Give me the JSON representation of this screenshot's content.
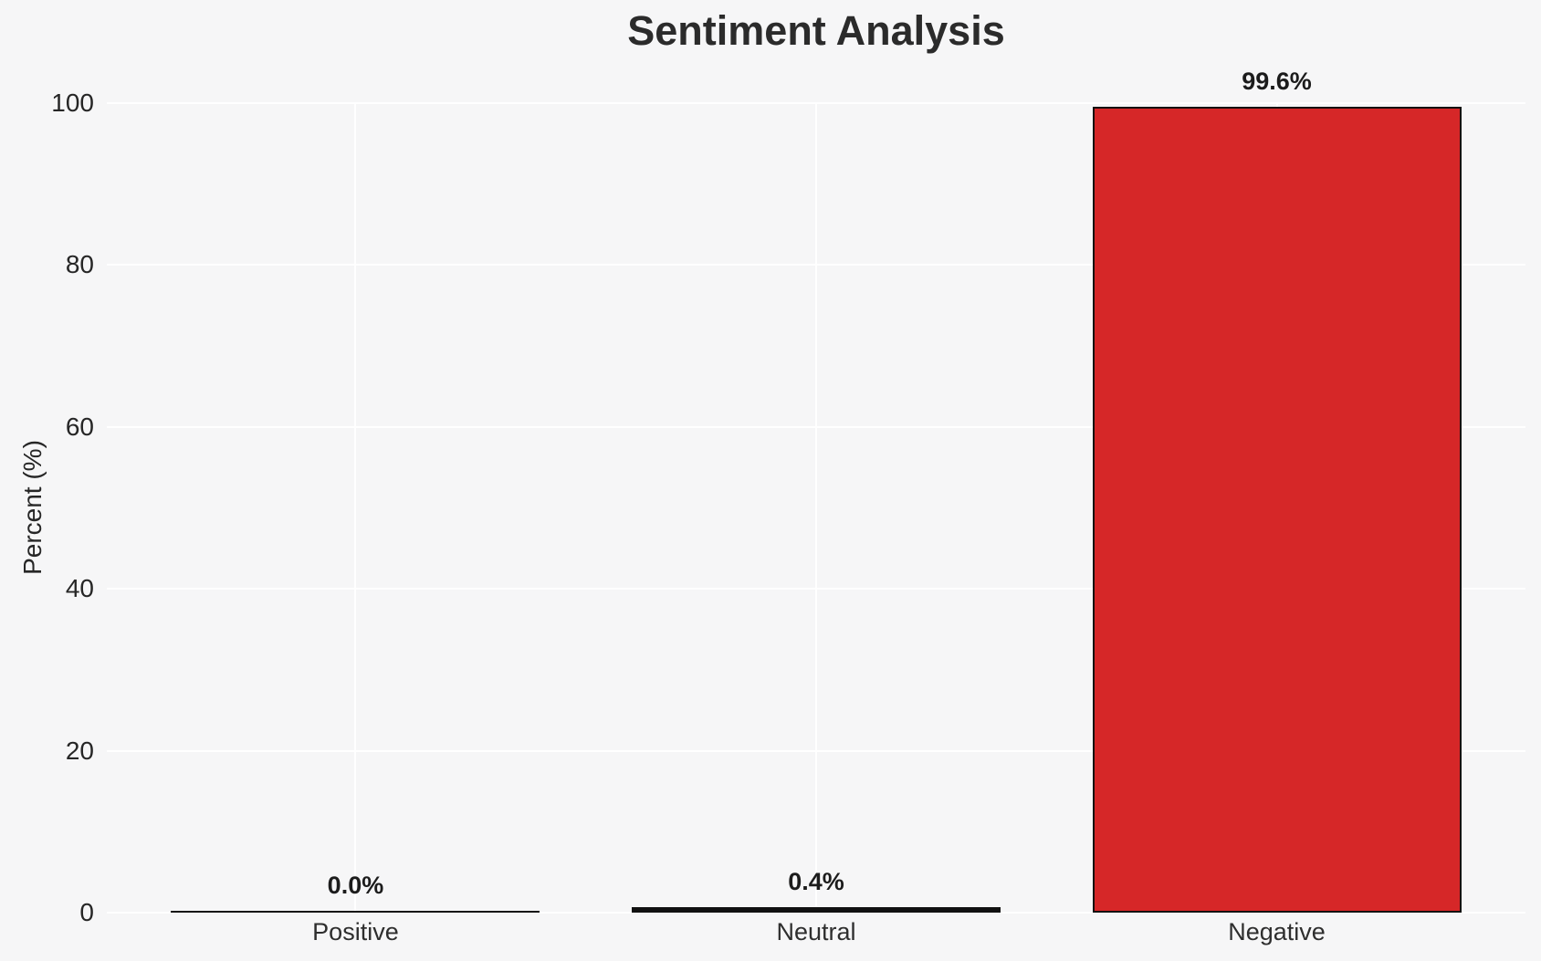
{
  "chart_data": {
    "type": "bar",
    "title": "Sentiment Analysis",
    "xlabel": "",
    "ylabel": "Percent (%)",
    "categories": [
      "Positive",
      "Neutral",
      "Negative"
    ],
    "values": [
      0.0,
      0.4,
      99.6
    ],
    "bar_value_labels": [
      "0.0%",
      "0.4%",
      "99.6%"
    ],
    "bar_fills": [
      null,
      null,
      "#d62728"
    ],
    "yticks": [
      0,
      20,
      40,
      60,
      80,
      100
    ],
    "ylim": [
      0,
      100
    ],
    "grid": "white gridlines, horizontal at yticks and vertical at category centers",
    "legend_position": "none",
    "colors": {
      "negative_bar_fill": "#d62728",
      "bar_edge": "#111111",
      "background": "#f6f6f7",
      "gridline": "#ffffff",
      "text": "#262626"
    }
  }
}
